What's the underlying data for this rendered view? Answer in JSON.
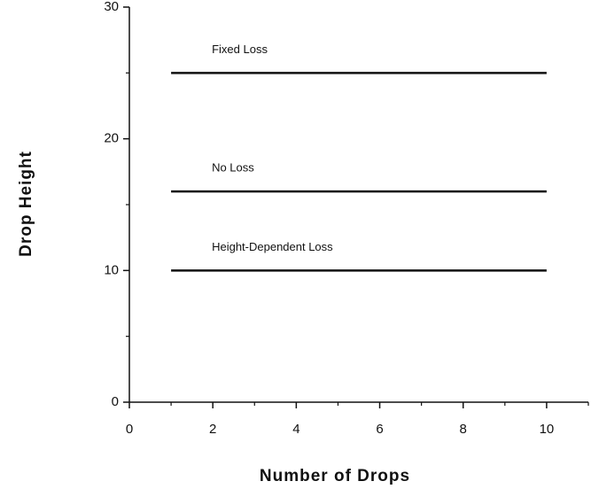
{
  "chart_data": {
    "type": "line",
    "xlabel": "Number of Drops",
    "ylabel": "Drop Height",
    "x": [
      1,
      10
    ],
    "series": [
      {
        "name": "Fixed Loss",
        "color": "#111111",
        "values": [
          25,
          25
        ]
      },
      {
        "name": "No Loss",
        "color": "#111111",
        "values": [
          16,
          16
        ]
      },
      {
        "name": "Height-Dependent Loss",
        "color": "#111111",
        "values": [
          10,
          10
        ]
      }
    ],
    "xlim": [
      0,
      11
    ],
    "xticks": [
      0,
      2,
      4,
      6,
      8,
      10
    ],
    "x_minor_ticks": [
      1,
      3,
      5,
      7,
      9,
      11
    ],
    "ylim": [
      0,
      30
    ],
    "yticks": [
      0,
      10,
      20,
      30
    ],
    "y_minor_ticks": [
      5,
      15,
      25
    ],
    "grid": false
  }
}
